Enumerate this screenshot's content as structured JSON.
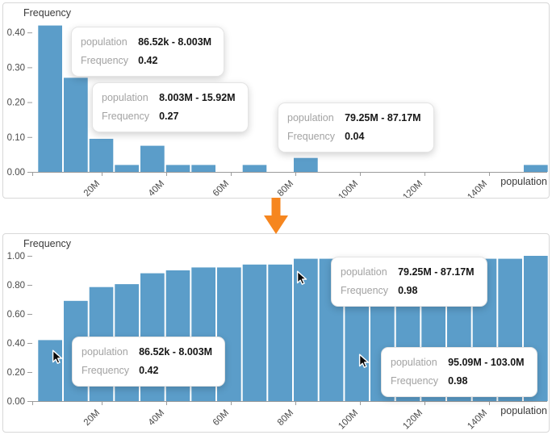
{
  "labels": {
    "population": "population",
    "frequency": "Frequency"
  },
  "colors": {
    "bar": "#5b9dc9",
    "axis": "#9b9b9b",
    "tick_text": "#4a4a4a",
    "title_text": "#3a3a3a",
    "arrow": "#f6861f"
  },
  "chart_data": [
    {
      "type": "bar",
      "name": "population-frequency-histogram",
      "title": "",
      "ylabel": "Frequency",
      "xlabel": "population",
      "grid": false,
      "legend": "none",
      "ylim": [
        0,
        0.44
      ],
      "y_ticks": [
        {
          "label": "0.00",
          "v": 0
        },
        {
          "label": "0.10",
          "v": 0.1
        },
        {
          "label": "0.20",
          "v": 0.2
        },
        {
          "label": "0.30",
          "v": 0.3
        },
        {
          "label": "0.40",
          "v": 0.4
        }
      ],
      "x_ticks": [
        {
          "label": "20M",
          "m": 20
        },
        {
          "label": "40M",
          "m": 40
        },
        {
          "label": "60M",
          "m": 60
        },
        {
          "label": "80M",
          "m": 80
        },
        {
          "label": "100M",
          "m": 100
        },
        {
          "label": "120M",
          "m": 120
        },
        {
          "label": "140M",
          "m": 140
        }
      ],
      "bin_edges_m": [
        0.08652,
        8.003,
        15.92,
        23.83,
        31.75,
        39.67,
        47.58,
        55.5,
        63.42,
        71.33,
        79.25,
        87.17,
        95.09,
        103.0,
        110.92,
        118.83,
        126.75,
        134.67,
        142.58,
        150.5,
        158.42
      ],
      "values": [
        0.42,
        0.27,
        0.095,
        0.02,
        0.075,
        0.02,
        0.02,
        0,
        0.02,
        0,
        0.04,
        0,
        0,
        0,
        0,
        0,
        0,
        0,
        0,
        0.02
      ]
    },
    {
      "type": "bar",
      "name": "population-cumulative-frequency-histogram",
      "title": "",
      "ylabel": "Frequency",
      "xlabel": "population",
      "grid": false,
      "legend": "none",
      "ylim": [
        0,
        1.04
      ],
      "y_ticks": [
        {
          "label": "0.00",
          "v": 0
        },
        {
          "label": "0.20",
          "v": 0.2
        },
        {
          "label": "0.40",
          "v": 0.4
        },
        {
          "label": "0.60",
          "v": 0.6
        },
        {
          "label": "0.80",
          "v": 0.8
        },
        {
          "label": "1.00",
          "v": 1.0
        }
      ],
      "x_ticks": [
        {
          "label": "20M",
          "m": 20
        },
        {
          "label": "40M",
          "m": 40
        },
        {
          "label": "60M",
          "m": 60
        },
        {
          "label": "80M",
          "m": 80
        },
        {
          "label": "100M",
          "m": 100
        },
        {
          "label": "120M",
          "m": 120
        },
        {
          "label": "140M",
          "m": 140
        }
      ],
      "bin_edges_m": [
        0.08652,
        8.003,
        15.92,
        23.83,
        31.75,
        39.67,
        47.58,
        55.5,
        63.42,
        71.33,
        79.25,
        87.17,
        95.09,
        103.0,
        110.92,
        118.83,
        126.75,
        134.67,
        142.58,
        150.5,
        158.42
      ],
      "values": [
        0.42,
        0.69,
        0.785,
        0.805,
        0.88,
        0.9,
        0.92,
        0.92,
        0.94,
        0.94,
        0.98,
        0.98,
        0.98,
        0.98,
        0.98,
        0.98,
        0.98,
        0.98,
        0.98,
        1.0
      ]
    }
  ],
  "tooltips": [
    {
      "range": "86.52k - 8.003M",
      "frequency": "0.42"
    },
    {
      "range": "8.003M - 15.92M",
      "frequency": "0.27"
    },
    {
      "range": "79.25M - 87.17M",
      "frequency": "0.04"
    },
    {
      "range": "86.52k - 8.003M",
      "frequency": "0.42"
    },
    {
      "range": "79.25M - 87.17M",
      "frequency": "0.98"
    },
    {
      "range": "95.09M - 103.0M",
      "frequency": "0.98"
    }
  ]
}
